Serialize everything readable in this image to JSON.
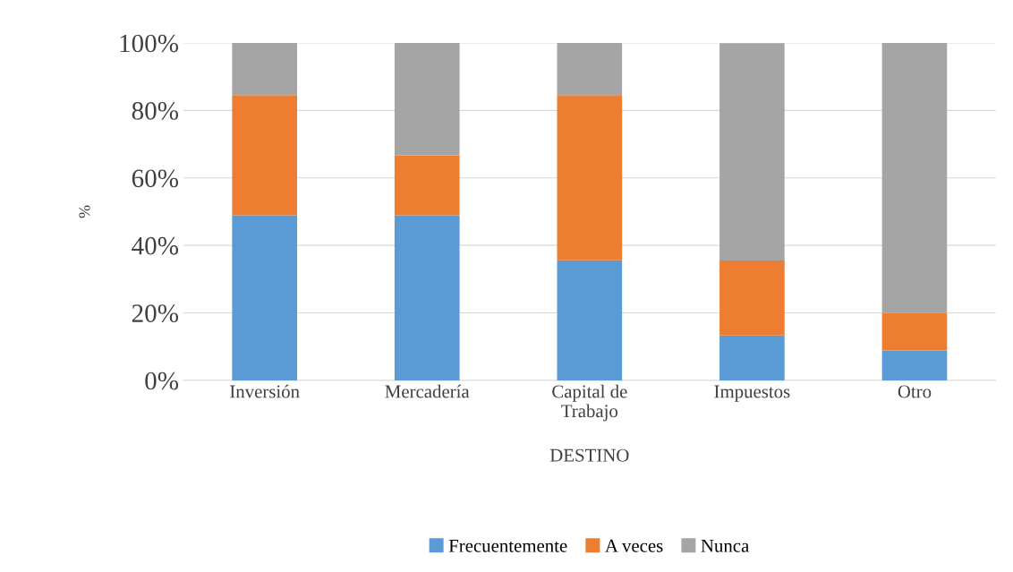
{
  "chart_data": {
    "type": "bar",
    "stacked": true,
    "xlabel": "DESTINO",
    "ylabel": "%",
    "categories": [
      "Inversión",
      "Mercadería",
      "Capital de\nTrabajo",
      "Impuestos",
      "Otro"
    ],
    "series": [
      {
        "name": "Frecuentemente",
        "color": "#5b9bd5",
        "values": [
          48.9,
          48.9,
          35.6,
          13.3,
          8.9
        ]
      },
      {
        "name": "A veces",
        "color": "#ed7d31",
        "values": [
          35.6,
          17.8,
          48.9,
          22.2,
          11.1
        ]
      },
      {
        "name": "Nunca",
        "color": "#a5a5a5",
        "values": [
          15.6,
          33.3,
          15.6,
          64.4,
          80.0
        ]
      }
    ],
    "ylim": [
      0,
      100
    ],
    "yticks": [
      {
        "value": 0,
        "label": "0%"
      },
      {
        "value": 20,
        "label": "20%"
      },
      {
        "value": 40,
        "label": "40%"
      },
      {
        "value": 60,
        "label": "60%"
      },
      {
        "value": 80,
        "label": "80%"
      },
      {
        "value": 100,
        "label": "100%"
      }
    ],
    "grid": "y",
    "legend": "bottom"
  }
}
